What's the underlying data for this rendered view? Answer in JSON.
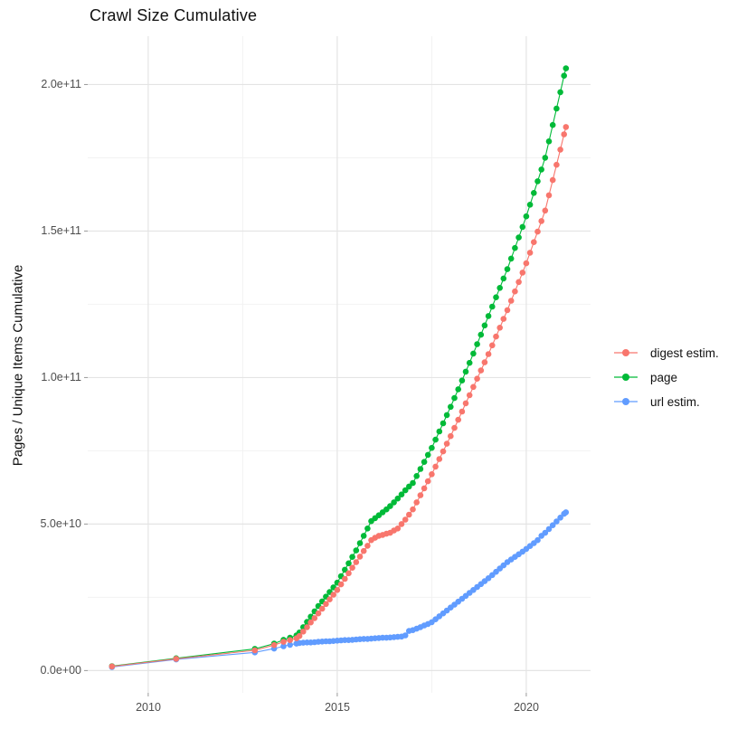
{
  "title": "Crawl Size Cumulative",
  "colors": {
    "digest": "#F8766D",
    "page": "#00BA38",
    "url": "#619CFF",
    "grid_major": "#E4E4E4",
    "grid_minor": "#F2F2F2",
    "tick_mark": "#999999",
    "tick_text": "#4d4d4d",
    "text": "#111111",
    "panel_bg": "#ffffff"
  },
  "chart_data": {
    "type": "line",
    "title": "Crawl Size Cumulative",
    "xlabel": "",
    "ylabel": "Pages / Unique Items Cumulative",
    "legend_position": "right",
    "grid": true,
    "values_unit": "1e9 (pages / unique items)",
    "x_axis": {
      "lim": [
        2008.4,
        2021.7
      ],
      "major": [
        {
          "value": 2010,
          "label": "2010"
        },
        {
          "value": 2015,
          "label": "2015"
        },
        {
          "value": 2020,
          "label": "2020"
        }
      ],
      "minor": [
        2012.5,
        2017.5
      ]
    },
    "y_axis": {
      "lim": [
        -7.6,
        216.5
      ],
      "major": [
        {
          "value": 0,
          "label": "0.0e+00"
        },
        {
          "value": 50,
          "label": "5.0e+10"
        },
        {
          "value": 100,
          "label": "1.0e+11"
        },
        {
          "value": 150,
          "label": "1.5e+11"
        },
        {
          "value": 200,
          "label": "2.0e+11"
        }
      ],
      "minor": [
        25,
        75,
        125,
        175
      ]
    },
    "series": [
      {
        "name": "digest estim.",
        "color": "#F8766D",
        "z": 3,
        "points": [
          [
            2009.04,
            1.4
          ],
          [
            2010.74,
            4.0
          ],
          [
            2012.82,
            6.9
          ],
          [
            2013.33,
            8.7
          ],
          [
            2013.58,
            9.8
          ],
          [
            2013.75,
            10.4
          ],
          [
            2013.92,
            11.0
          ],
          [
            2014.0,
            11.8
          ],
          [
            2014.1,
            13.3
          ],
          [
            2014.2,
            14.8
          ],
          [
            2014.3,
            16.4
          ],
          [
            2014.4,
            17.9
          ],
          [
            2014.5,
            19.5
          ],
          [
            2014.6,
            21.1
          ],
          [
            2014.7,
            22.7
          ],
          [
            2014.8,
            24.3
          ],
          [
            2014.9,
            25.9
          ],
          [
            2015.0,
            27.5
          ],
          [
            2015.1,
            29.4
          ],
          [
            2015.2,
            31.3
          ],
          [
            2015.3,
            33.2
          ],
          [
            2015.4,
            35.1
          ],
          [
            2015.5,
            37.0
          ],
          [
            2015.6,
            38.9
          ],
          [
            2015.7,
            40.8
          ],
          [
            2015.8,
            42.6
          ],
          [
            2015.9,
            44.5
          ],
          [
            2016.0,
            45.3
          ],
          [
            2016.1,
            46.0
          ],
          [
            2016.2,
            46.3
          ],
          [
            2016.3,
            46.7
          ],
          [
            2016.4,
            47.0
          ],
          [
            2016.5,
            47.8
          ],
          [
            2016.6,
            48.5
          ],
          [
            2016.7,
            50.0
          ],
          [
            2016.8,
            51.5
          ],
          [
            2016.9,
            53.2
          ],
          [
            2017.0,
            55.0
          ],
          [
            2017.1,
            57.4
          ],
          [
            2017.2,
            59.8
          ],
          [
            2017.3,
            62.2
          ],
          [
            2017.4,
            64.6
          ],
          [
            2017.5,
            67.0
          ],
          [
            2017.6,
            69.6
          ],
          [
            2017.7,
            72.2
          ],
          [
            2017.8,
            74.8
          ],
          [
            2017.9,
            77.4
          ],
          [
            2018.0,
            80.0
          ],
          [
            2018.1,
            82.8
          ],
          [
            2018.2,
            85.6
          ],
          [
            2018.3,
            88.4
          ],
          [
            2018.4,
            91.2
          ],
          [
            2018.5,
            94.0
          ],
          [
            2018.6,
            96.8
          ],
          [
            2018.7,
            99.6
          ],
          [
            2018.8,
            102.4
          ],
          [
            2018.9,
            105.2
          ],
          [
            2019.0,
            108.0
          ],
          [
            2019.1,
            111.0
          ],
          [
            2019.2,
            114.0
          ],
          [
            2019.3,
            117.0
          ],
          [
            2019.4,
            120.0
          ],
          [
            2019.5,
            123.0
          ],
          [
            2019.6,
            126.2
          ],
          [
            2019.7,
            129.4
          ],
          [
            2019.8,
            132.6
          ],
          [
            2019.9,
            135.8
          ],
          [
            2020.0,
            139.0
          ],
          [
            2020.1,
            142.6
          ],
          [
            2020.2,
            146.2
          ],
          [
            2020.3,
            149.8
          ],
          [
            2020.4,
            153.4
          ],
          [
            2020.5,
            157.0
          ],
          [
            2020.6,
            162.2
          ],
          [
            2020.7,
            167.4
          ],
          [
            2020.8,
            172.6
          ],
          [
            2020.9,
            177.8
          ],
          [
            2021.0,
            183.0
          ],
          [
            2021.05,
            185.5
          ]
        ]
      },
      {
        "name": "page",
        "color": "#00BA38",
        "z": 1,
        "points": [
          [
            2009.04,
            1.5
          ],
          [
            2010.74,
            4.2
          ],
          [
            2012.82,
            7.4
          ],
          [
            2013.33,
            9.2
          ],
          [
            2013.58,
            10.5
          ],
          [
            2013.75,
            11.2
          ],
          [
            2013.92,
            12.0
          ],
          [
            2014.0,
            13.0
          ],
          [
            2014.1,
            14.8
          ],
          [
            2014.2,
            16.6
          ],
          [
            2014.3,
            18.4
          ],
          [
            2014.4,
            20.2
          ],
          [
            2014.5,
            22.0
          ],
          [
            2014.6,
            23.6
          ],
          [
            2014.7,
            25.2
          ],
          [
            2014.8,
            26.8
          ],
          [
            2014.9,
            28.4
          ],
          [
            2015.0,
            30.0
          ],
          [
            2015.1,
            32.2
          ],
          [
            2015.2,
            34.4
          ],
          [
            2015.3,
            36.6
          ],
          [
            2015.4,
            38.8
          ],
          [
            2015.5,
            41.0
          ],
          [
            2015.6,
            43.5
          ],
          [
            2015.7,
            46.0
          ],
          [
            2015.8,
            48.5
          ],
          [
            2015.9,
            51.0
          ],
          [
            2016.0,
            52.0
          ],
          [
            2016.1,
            53.0
          ],
          [
            2016.2,
            54.0
          ],
          [
            2016.3,
            55.0
          ],
          [
            2016.4,
            56.1
          ],
          [
            2016.5,
            57.4
          ],
          [
            2016.6,
            58.7
          ],
          [
            2016.7,
            60.1
          ],
          [
            2016.8,
            61.5
          ],
          [
            2016.9,
            62.8
          ],
          [
            2017.0,
            64.0
          ],
          [
            2017.1,
            66.4
          ],
          [
            2017.2,
            68.8
          ],
          [
            2017.3,
            71.2
          ],
          [
            2017.4,
            73.6
          ],
          [
            2017.5,
            76.0
          ],
          [
            2017.6,
            78.8
          ],
          [
            2017.7,
            81.6
          ],
          [
            2017.8,
            84.4
          ],
          [
            2017.9,
            87.2
          ],
          [
            2018.0,
            90.0
          ],
          [
            2018.1,
            93.0
          ],
          [
            2018.2,
            96.0
          ],
          [
            2018.3,
            99.0
          ],
          [
            2018.4,
            102.0
          ],
          [
            2018.5,
            105.0
          ],
          [
            2018.6,
            108.2
          ],
          [
            2018.7,
            111.4
          ],
          [
            2018.8,
            114.6
          ],
          [
            2018.9,
            117.8
          ],
          [
            2019.0,
            121.0
          ],
          [
            2019.1,
            124.2
          ],
          [
            2019.2,
            127.4
          ],
          [
            2019.3,
            130.6
          ],
          [
            2019.4,
            133.8
          ],
          [
            2019.5,
            137.0
          ],
          [
            2019.6,
            140.6
          ],
          [
            2019.7,
            144.2
          ],
          [
            2019.8,
            147.8
          ],
          [
            2019.9,
            151.4
          ],
          [
            2020.0,
            155.0
          ],
          [
            2020.1,
            159.0
          ],
          [
            2020.2,
            163.0
          ],
          [
            2020.3,
            167.0
          ],
          [
            2020.4,
            171.0
          ],
          [
            2020.5,
            175.0
          ],
          [
            2020.6,
            180.6
          ],
          [
            2020.7,
            186.2
          ],
          [
            2020.8,
            191.8
          ],
          [
            2020.9,
            197.4
          ],
          [
            2021.0,
            203.0
          ],
          [
            2021.05,
            205.5
          ]
        ]
      },
      {
        "name": "url estim.",
        "color": "#619CFF",
        "z": 2,
        "points": [
          [
            2009.04,
            1.2
          ],
          [
            2010.74,
            3.8
          ],
          [
            2012.82,
            6.2
          ],
          [
            2013.33,
            7.5
          ],
          [
            2013.58,
            8.3
          ],
          [
            2013.75,
            8.8
          ],
          [
            2013.92,
            9.2
          ],
          [
            2014.0,
            9.4
          ],
          [
            2014.1,
            9.5
          ],
          [
            2014.2,
            9.6
          ],
          [
            2014.3,
            9.6
          ],
          [
            2014.4,
            9.7
          ],
          [
            2014.5,
            9.8
          ],
          [
            2014.6,
            9.9
          ],
          [
            2014.7,
            10.0
          ],
          [
            2014.8,
            10.0
          ],
          [
            2014.9,
            10.1
          ],
          [
            2015.0,
            10.2
          ],
          [
            2015.1,
            10.3
          ],
          [
            2015.2,
            10.4
          ],
          [
            2015.3,
            10.4
          ],
          [
            2015.4,
            10.5
          ],
          [
            2015.5,
            10.6
          ],
          [
            2015.6,
            10.7
          ],
          [
            2015.7,
            10.8
          ],
          [
            2015.8,
            10.8
          ],
          [
            2015.9,
            10.9
          ],
          [
            2016.0,
            11.0
          ],
          [
            2016.1,
            11.1
          ],
          [
            2016.2,
            11.2
          ],
          [
            2016.3,
            11.2
          ],
          [
            2016.4,
            11.3
          ],
          [
            2016.5,
            11.4
          ],
          [
            2016.6,
            11.5
          ],
          [
            2016.7,
            11.6
          ],
          [
            2016.8,
            12.0
          ],
          [
            2016.9,
            13.5
          ],
          [
            2017.0,
            13.8
          ],
          [
            2017.1,
            14.3
          ],
          [
            2017.2,
            14.8
          ],
          [
            2017.3,
            15.4
          ],
          [
            2017.4,
            15.9
          ],
          [
            2017.5,
            16.5
          ],
          [
            2017.6,
            17.5
          ],
          [
            2017.7,
            18.5
          ],
          [
            2017.8,
            19.5
          ],
          [
            2017.9,
            20.5
          ],
          [
            2018.0,
            21.5
          ],
          [
            2018.1,
            22.5
          ],
          [
            2018.2,
            23.5
          ],
          [
            2018.3,
            24.5
          ],
          [
            2018.4,
            25.5
          ],
          [
            2018.5,
            26.5
          ],
          [
            2018.6,
            27.5
          ],
          [
            2018.7,
            28.5
          ],
          [
            2018.8,
            29.5
          ],
          [
            2018.9,
            30.5
          ],
          [
            2019.0,
            31.5
          ],
          [
            2019.1,
            32.6
          ],
          [
            2019.2,
            33.7
          ],
          [
            2019.3,
            34.8
          ],
          [
            2019.4,
            35.9
          ],
          [
            2019.5,
            37.0
          ],
          [
            2019.6,
            37.9
          ],
          [
            2019.7,
            38.8
          ],
          [
            2019.8,
            39.7
          ],
          [
            2019.9,
            40.6
          ],
          [
            2020.0,
            41.5
          ],
          [
            2020.1,
            42.5
          ],
          [
            2020.2,
            43.5
          ],
          [
            2020.3,
            44.5
          ],
          [
            2020.4,
            46.0
          ],
          [
            2020.5,
            47.0
          ],
          [
            2020.6,
            48.3
          ],
          [
            2020.7,
            49.6
          ],
          [
            2020.8,
            50.9
          ],
          [
            2020.9,
            52.2
          ],
          [
            2021.0,
            53.5
          ],
          [
            2021.05,
            54.0
          ]
        ]
      }
    ]
  }
}
